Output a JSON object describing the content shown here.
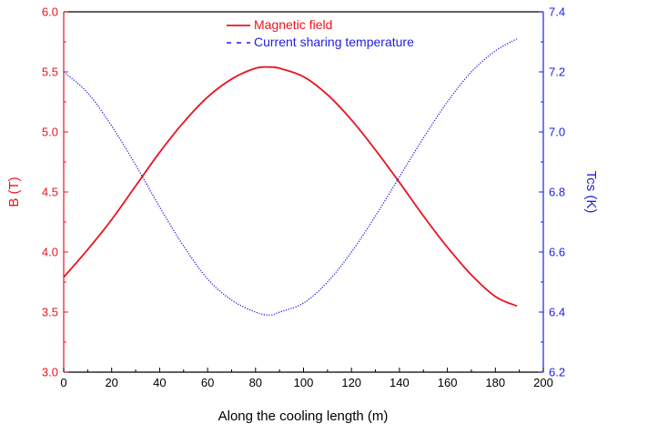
{
  "chart_data": {
    "type": "line",
    "title": "",
    "xlabel": "Along the cooling length (m)",
    "ylabel_left": "B (T)",
    "ylabel_right": "Tcs (K)",
    "xlim": [
      0,
      200
    ],
    "ylim_left": [
      3.0,
      6.0
    ],
    "ylim_right": [
      6.2,
      7.4
    ],
    "x_ticks": [
      "0",
      "20",
      "40",
      "60",
      "80",
      "100",
      "120",
      "140",
      "160",
      "180",
      "200"
    ],
    "y_left_ticks": [
      "3.0",
      "3.5",
      "4.0",
      "4.5",
      "5.0",
      "5.5",
      "6.0"
    ],
    "y_right_ticks": [
      "6.2",
      "6.4",
      "6.6",
      "6.8",
      "7.0",
      "7.2",
      "7.4"
    ],
    "grid": false,
    "legend_position": "top-center",
    "colors": {
      "left_axis": "#e8141e",
      "right_axis": "#1e1ee0"
    },
    "series": [
      {
        "name": "Magnetic field",
        "axis": "left",
        "style": "solid",
        "color": "#e8141e",
        "x": [
          0,
          10,
          20,
          30,
          40,
          50,
          60,
          70,
          80,
          86,
          90,
          100,
          110,
          120,
          130,
          140,
          150,
          160,
          170,
          180,
          189
        ],
        "y": [
          3.79,
          4.02,
          4.27,
          4.55,
          4.83,
          5.08,
          5.29,
          5.44,
          5.53,
          5.54,
          5.53,
          5.46,
          5.31,
          5.1,
          4.85,
          4.58,
          4.3,
          4.04,
          3.81,
          3.63,
          3.55
        ]
      },
      {
        "name": "Current sharing temperature",
        "axis": "right",
        "style": "dotted",
        "color": "#1e1ee0",
        "x": [
          0,
          10,
          20,
          30,
          40,
          50,
          60,
          70,
          80,
          86,
          90,
          100,
          110,
          120,
          130,
          140,
          150,
          160,
          170,
          180,
          189
        ],
        "y": [
          7.2,
          7.13,
          7.02,
          6.89,
          6.75,
          6.62,
          6.51,
          6.44,
          6.4,
          6.39,
          6.4,
          6.43,
          6.5,
          6.6,
          6.72,
          6.85,
          6.98,
          7.1,
          7.2,
          7.27,
          7.31
        ]
      }
    ]
  }
}
